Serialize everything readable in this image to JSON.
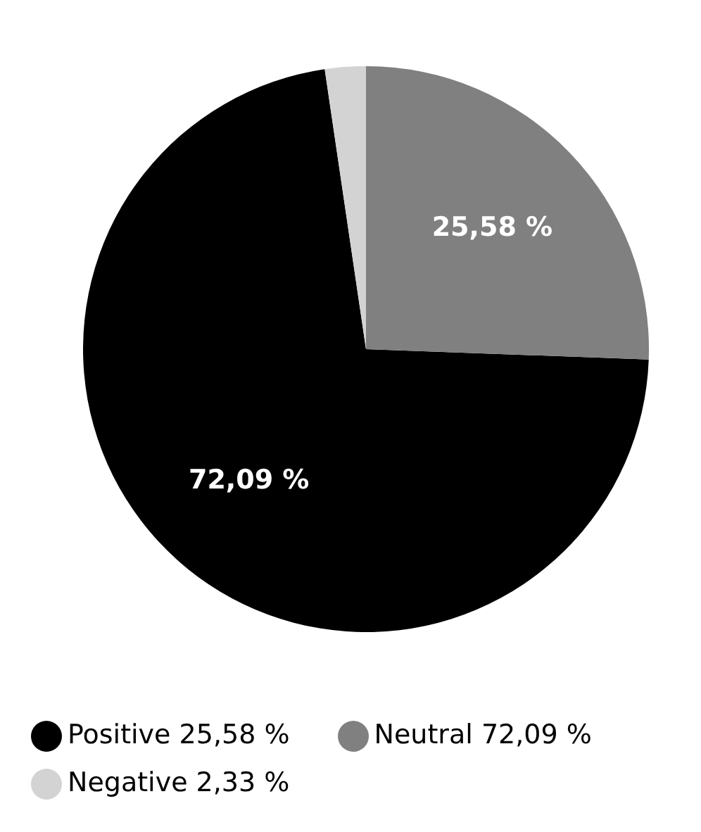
{
  "chart_data": {
    "type": "pie",
    "categories": [
      "Positive 25,58 %",
      "Neutral 72,09 %",
      "Negative 2,33 %"
    ],
    "values": [
      72.09,
      25.58,
      2.33
    ],
    "colors": [
      "#000000",
      "#808080",
      "#d3d3d3"
    ],
    "value_labels": [
      "72,09 %",
      "25,58 %",
      null
    ],
    "legend": "bottom"
  }
}
